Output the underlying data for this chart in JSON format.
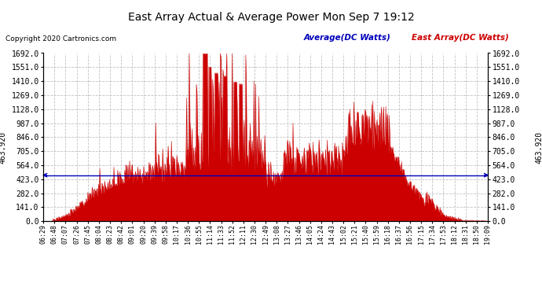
{
  "title": "East Array Actual & Average Power Mon Sep 7 19:12",
  "copyright": "Copyright 2020 Cartronics.com",
  "legend_avg": "Average(DC Watts)",
  "legend_east": "East Array(DC Watts)",
  "avg_value": 463.92,
  "y_max": 1692.0,
  "y_min": 0.0,
  "yticks": [
    0.0,
    141.0,
    282.0,
    423.0,
    564.0,
    705.0,
    846.0,
    987.0,
    1128.0,
    1269.0,
    1410.0,
    1551.0,
    1692.0
  ],
  "background_color": "#ffffff",
  "fill_color": "#cc0000",
  "avg_line_color": "#0000bb",
  "grid_color": "#bbbbbb",
  "title_color": "#000000",
  "copyright_color": "#000000",
  "legend_avg_color": "#0000bb",
  "legend_east_color": "#cc0000",
  "xtick_labels": [
    "06:29",
    "06:48",
    "07:07",
    "07:26",
    "07:45",
    "08:04",
    "08:23",
    "08:42",
    "09:01",
    "09:20",
    "09:39",
    "09:58",
    "10:17",
    "10:36",
    "10:55",
    "11:14",
    "11:33",
    "11:52",
    "12:11",
    "12:30",
    "12:49",
    "13:08",
    "13:27",
    "13:46",
    "14:05",
    "14:24",
    "14:43",
    "15:02",
    "15:21",
    "15:40",
    "15:59",
    "16:18",
    "16:37",
    "16:56",
    "17:15",
    "17:34",
    "17:53",
    "18:12",
    "18:31",
    "18:50",
    "19:09"
  ]
}
